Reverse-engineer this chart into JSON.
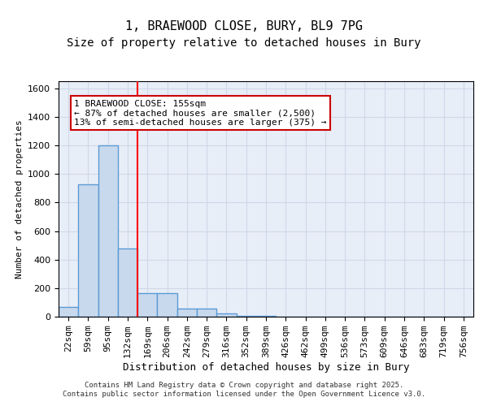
{
  "title_line1": "1, BRAEWOOD CLOSE, BURY, BL9 7PG",
  "title_line2": "Size of property relative to detached houses in Bury",
  "xlabel": "Distribution of detached houses by size in Bury",
  "ylabel": "Number of detached properties",
  "bar_values": [
    70,
    930,
    1200,
    480,
    165,
    165,
    55,
    55,
    20,
    5,
    5,
    2,
    2,
    1,
    1,
    1,
    0,
    0,
    0,
    0,
    0
  ],
  "bar_labels": [
    "22sqm",
    "59sqm",
    "95sqm",
    "132sqm",
    "169sqm",
    "206sqm",
    "242sqm",
    "279sqm",
    "316sqm",
    "352sqm",
    "389sqm",
    "426sqm",
    "462sqm",
    "499sqm",
    "536sqm",
    "573sqm",
    "609sqm",
    "646sqm",
    "683sqm",
    "719sqm",
    "756sqm"
  ],
  "bar_color": "#c9d9ed",
  "bar_edge_color": "#5b9bd5",
  "bar_edge_width": 1.0,
  "ylim": [
    0,
    1650
  ],
  "yticks": [
    0,
    200,
    400,
    600,
    800,
    1000,
    1200,
    1400,
    1600
  ],
  "grid_color": "#d0d8e8",
  "background_color": "#e8eef8",
  "red_line_x": 3.5,
  "annotation_text": "1 BRAEWOOD CLOSE: 155sqm\n← 87% of detached houses are smaller (2,500)\n13% of semi-detached houses are larger (375) →",
  "annotation_box_color": "#ffffff",
  "annotation_box_edge": "#cc0000",
  "footnote": "Contains HM Land Registry data © Crown copyright and database right 2025.\nContains public sector information licensed under the Open Government Licence v3.0.",
  "title_fontsize": 11,
  "subtitle_fontsize": 10,
  "tick_fontsize": 8,
  "annotation_fontsize": 8
}
